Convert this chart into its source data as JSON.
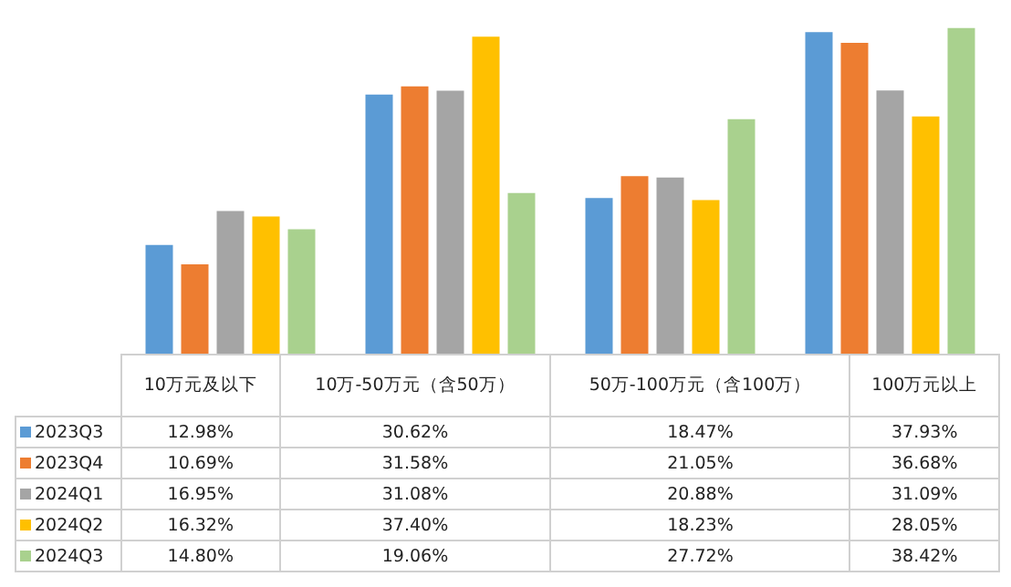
{
  "chart_data": {
    "type": "bar",
    "categories": [
      "10万元及以下",
      "10万-50万元（含50万）",
      "50万-100万元（含100万）",
      "100万元以上"
    ],
    "series": [
      {
        "name": "2023Q3",
        "color": "#5b9bd5",
        "values": [
          12.98,
          30.62,
          18.47,
          37.93
        ],
        "value_labels": [
          "12.98%",
          "30.62%",
          "18.47%",
          "37.93%"
        ]
      },
      {
        "name": "2023Q4",
        "color": "#ed7d31",
        "values": [
          10.69,
          31.58,
          21.05,
          36.68
        ],
        "value_labels": [
          "10.69%",
          "31.58%",
          "21.05%",
          "36.68%"
        ]
      },
      {
        "name": "2024Q1",
        "color": "#a5a5a5",
        "values": [
          16.95,
          31.08,
          20.88,
          31.09
        ],
        "value_labels": [
          "16.95%",
          "31.08%",
          "20.88%",
          "31.09%"
        ]
      },
      {
        "name": "2024Q2",
        "color": "#ffc000",
        "values": [
          16.32,
          37.4,
          18.23,
          28.05
        ],
        "value_labels": [
          "16.32%",
          "37.40%",
          "18.23%",
          "28.05%"
        ]
      },
      {
        "name": "2024Q3",
        "color": "#a9d18e",
        "values": [
          14.8,
          19.06,
          27.72,
          38.42
        ],
        "value_labels": [
          "14.80%",
          "19.06%",
          "27.72%",
          "38.42%"
        ]
      }
    ],
    "legend": "bottom"
  }
}
